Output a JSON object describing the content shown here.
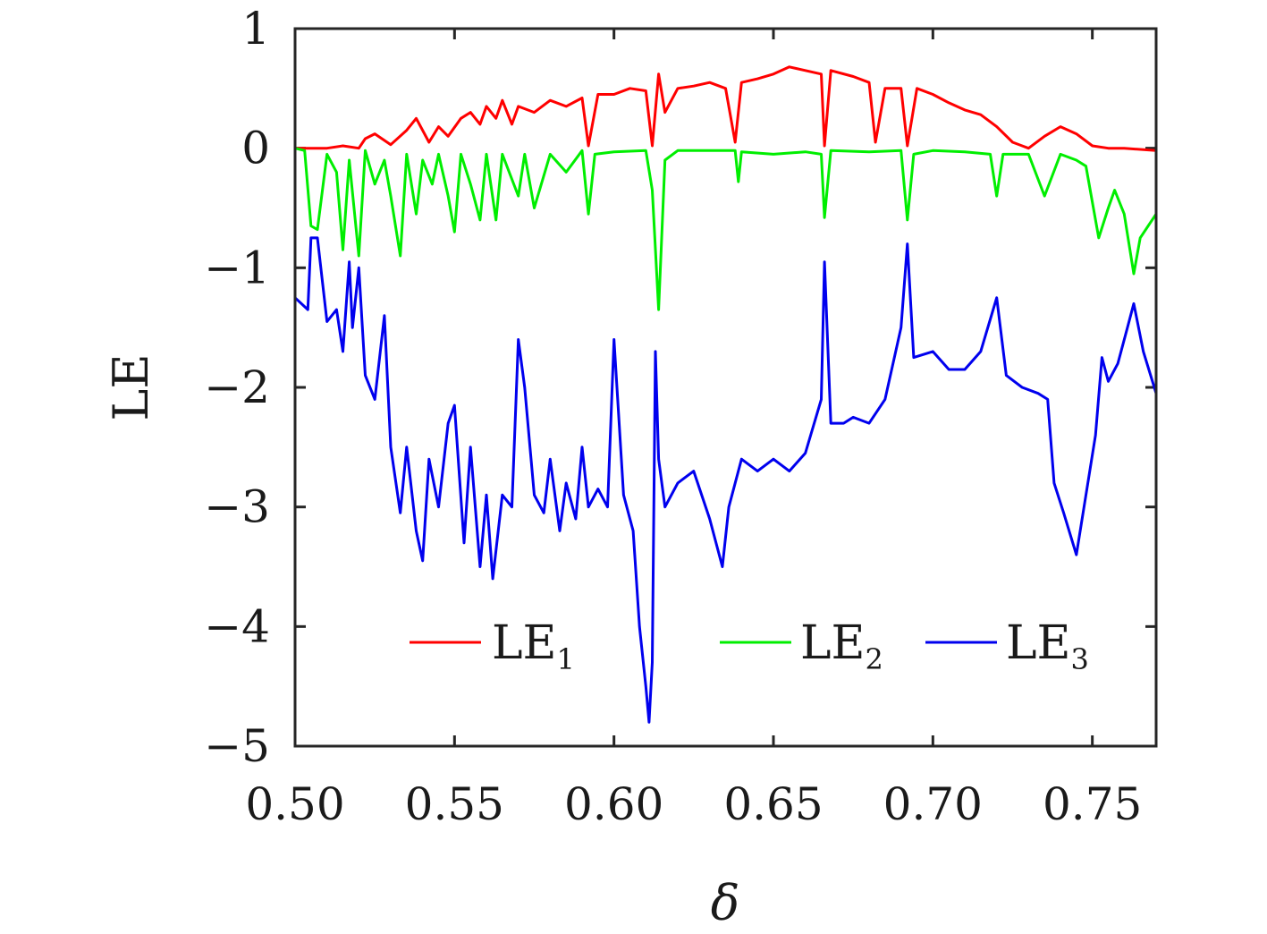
{
  "chart_data": {
    "type": "line",
    "title": "",
    "xlabel": "δ",
    "ylabel": "LE",
    "xlim": [
      0.5,
      0.77
    ],
    "ylim": [
      -5,
      1
    ],
    "x_ticks": [
      0.5,
      0.55,
      0.6,
      0.65,
      0.7,
      0.75
    ],
    "x_tick_labels": [
      "0.50",
      "0.55",
      "0.60",
      "0.65",
      "0.70",
      "0.75"
    ],
    "y_ticks": [
      1,
      0,
      -1,
      -2,
      -3,
      -4,
      -5
    ],
    "y_tick_labels": [
      "1",
      "0",
      "−1",
      "−2",
      "−3",
      "−4",
      "−5"
    ],
    "grid": false,
    "legend_position": "bottom",
    "series": [
      {
        "name": "LE1",
        "legend_main": "LE",
        "legend_sub": "1",
        "color": "#ff0000",
        "points": [
          [
            0.5,
            0.0
          ],
          [
            0.51,
            0.0
          ],
          [
            0.515,
            0.02
          ],
          [
            0.52,
            0.0
          ],
          [
            0.522,
            0.08
          ],
          [
            0.525,
            0.12
          ],
          [
            0.53,
            0.03
          ],
          [
            0.535,
            0.15
          ],
          [
            0.538,
            0.25
          ],
          [
            0.542,
            0.05
          ],
          [
            0.545,
            0.18
          ],
          [
            0.548,
            0.1
          ],
          [
            0.552,
            0.25
          ],
          [
            0.555,
            0.3
          ],
          [
            0.558,
            0.2
          ],
          [
            0.56,
            0.35
          ],
          [
            0.563,
            0.25
          ],
          [
            0.565,
            0.4
          ],
          [
            0.568,
            0.2
          ],
          [
            0.57,
            0.35
          ],
          [
            0.575,
            0.3
          ],
          [
            0.58,
            0.4
          ],
          [
            0.585,
            0.35
          ],
          [
            0.59,
            0.42
          ],
          [
            0.592,
            0.02
          ],
          [
            0.595,
            0.45
          ],
          [
            0.6,
            0.45
          ],
          [
            0.605,
            0.5
          ],
          [
            0.61,
            0.48
          ],
          [
            0.612,
            0.02
          ],
          [
            0.614,
            0.62
          ],
          [
            0.616,
            0.3
          ],
          [
            0.62,
            0.5
          ],
          [
            0.625,
            0.52
          ],
          [
            0.63,
            0.55
          ],
          [
            0.635,
            0.5
          ],
          [
            0.638,
            0.05
          ],
          [
            0.64,
            0.55
          ],
          [
            0.645,
            0.58
          ],
          [
            0.65,
            0.62
          ],
          [
            0.655,
            0.68
          ],
          [
            0.66,
            0.65
          ],
          [
            0.665,
            0.62
          ],
          [
            0.666,
            0.02
          ],
          [
            0.668,
            0.65
          ],
          [
            0.675,
            0.6
          ],
          [
            0.68,
            0.55
          ],
          [
            0.682,
            0.05
          ],
          [
            0.685,
            0.5
          ],
          [
            0.69,
            0.5
          ],
          [
            0.692,
            0.02
          ],
          [
            0.695,
            0.5
          ],
          [
            0.7,
            0.45
          ],
          [
            0.705,
            0.38
          ],
          [
            0.71,
            0.32
          ],
          [
            0.715,
            0.28
          ],
          [
            0.72,
            0.18
          ],
          [
            0.725,
            0.05
          ],
          [
            0.73,
            0.0
          ],
          [
            0.735,
            0.1
          ],
          [
            0.74,
            0.18
          ],
          [
            0.745,
            0.12
          ],
          [
            0.75,
            0.02
          ],
          [
            0.755,
            0.0
          ],
          [
            0.76,
            0.0
          ],
          [
            0.77,
            -0.02
          ]
        ]
      },
      {
        "name": "LE2",
        "legend_main": "LE",
        "legend_sub": "2",
        "color": "#00ee00",
        "points": [
          [
            0.5,
            0.0
          ],
          [
            0.503,
            -0.02
          ],
          [
            0.505,
            -0.65
          ],
          [
            0.507,
            -0.68
          ],
          [
            0.51,
            -0.05
          ],
          [
            0.513,
            -0.2
          ],
          [
            0.515,
            -0.85
          ],
          [
            0.517,
            -0.1
          ],
          [
            0.52,
            -0.9
          ],
          [
            0.522,
            -0.02
          ],
          [
            0.525,
            -0.3
          ],
          [
            0.528,
            -0.1
          ],
          [
            0.53,
            -0.4
          ],
          [
            0.533,
            -0.9
          ],
          [
            0.535,
            -0.05
          ],
          [
            0.538,
            -0.55
          ],
          [
            0.54,
            -0.1
          ],
          [
            0.543,
            -0.3
          ],
          [
            0.545,
            -0.05
          ],
          [
            0.548,
            -0.4
          ],
          [
            0.55,
            -0.7
          ],
          [
            0.552,
            -0.05
          ],
          [
            0.555,
            -0.3
          ],
          [
            0.558,
            -0.6
          ],
          [
            0.56,
            -0.05
          ],
          [
            0.563,
            -0.6
          ],
          [
            0.565,
            -0.05
          ],
          [
            0.57,
            -0.4
          ],
          [
            0.572,
            -0.05
          ],
          [
            0.575,
            -0.5
          ],
          [
            0.58,
            -0.05
          ],
          [
            0.585,
            -0.2
          ],
          [
            0.59,
            -0.02
          ],
          [
            0.592,
            -0.55
          ],
          [
            0.594,
            -0.05
          ],
          [
            0.6,
            -0.03
          ],
          [
            0.61,
            -0.02
          ],
          [
            0.612,
            -0.35
          ],
          [
            0.614,
            -1.35
          ],
          [
            0.616,
            -0.1
          ],
          [
            0.62,
            -0.02
          ],
          [
            0.63,
            -0.02
          ],
          [
            0.638,
            -0.02
          ],
          [
            0.639,
            -0.28
          ],
          [
            0.64,
            -0.03
          ],
          [
            0.65,
            -0.05
          ],
          [
            0.66,
            -0.03
          ],
          [
            0.665,
            -0.05
          ],
          [
            0.666,
            -0.58
          ],
          [
            0.668,
            -0.02
          ],
          [
            0.68,
            -0.03
          ],
          [
            0.69,
            -0.02
          ],
          [
            0.692,
            -0.6
          ],
          [
            0.694,
            -0.05
          ],
          [
            0.7,
            -0.02
          ],
          [
            0.71,
            -0.03
          ],
          [
            0.718,
            -0.05
          ],
          [
            0.72,
            -0.4
          ],
          [
            0.722,
            -0.05
          ],
          [
            0.73,
            -0.05
          ],
          [
            0.735,
            -0.4
          ],
          [
            0.74,
            -0.05
          ],
          [
            0.745,
            -0.1
          ],
          [
            0.748,
            -0.15
          ],
          [
            0.752,
            -0.75
          ],
          [
            0.755,
            -0.5
          ],
          [
            0.757,
            -0.35
          ],
          [
            0.76,
            -0.55
          ],
          [
            0.763,
            -1.05
          ],
          [
            0.765,
            -0.75
          ],
          [
            0.77,
            -0.55
          ]
        ]
      },
      {
        "name": "LE3",
        "legend_main": "LE",
        "legend_sub": "3",
        "color": "#0000ee",
        "points": [
          [
            0.5,
            -1.25
          ],
          [
            0.504,
            -1.35
          ],
          [
            0.505,
            -0.75
          ],
          [
            0.507,
            -0.75
          ],
          [
            0.51,
            -1.45
          ],
          [
            0.513,
            -1.35
          ],
          [
            0.515,
            -1.7
          ],
          [
            0.517,
            -0.95
          ],
          [
            0.518,
            -1.5
          ],
          [
            0.52,
            -1.0
          ],
          [
            0.522,
            -1.9
          ],
          [
            0.525,
            -2.1
          ],
          [
            0.528,
            -1.4
          ],
          [
            0.53,
            -2.5
          ],
          [
            0.533,
            -3.05
          ],
          [
            0.535,
            -2.5
          ],
          [
            0.538,
            -3.2
          ],
          [
            0.54,
            -3.45
          ],
          [
            0.542,
            -2.6
          ],
          [
            0.545,
            -3.0
          ],
          [
            0.548,
            -2.3
          ],
          [
            0.55,
            -2.15
          ],
          [
            0.553,
            -3.3
          ],
          [
            0.555,
            -2.5
          ],
          [
            0.558,
            -3.5
          ],
          [
            0.56,
            -2.9
          ],
          [
            0.562,
            -3.6
          ],
          [
            0.565,
            -2.9
          ],
          [
            0.568,
            -3.0
          ],
          [
            0.57,
            -1.6
          ],
          [
            0.572,
            -2.0
          ],
          [
            0.575,
            -2.9
          ],
          [
            0.578,
            -3.05
          ],
          [
            0.58,
            -2.6
          ],
          [
            0.583,
            -3.2
          ],
          [
            0.585,
            -2.8
          ],
          [
            0.588,
            -3.1
          ],
          [
            0.59,
            -2.5
          ],
          [
            0.592,
            -3.0
          ],
          [
            0.595,
            -2.85
          ],
          [
            0.598,
            -3.0
          ],
          [
            0.6,
            -1.6
          ],
          [
            0.603,
            -2.9
          ],
          [
            0.606,
            -3.2
          ],
          [
            0.608,
            -4.0
          ],
          [
            0.61,
            -4.5
          ],
          [
            0.611,
            -4.8
          ],
          [
            0.612,
            -4.3
          ],
          [
            0.613,
            -1.7
          ],
          [
            0.614,
            -2.6
          ],
          [
            0.616,
            -3.0
          ],
          [
            0.62,
            -2.8
          ],
          [
            0.625,
            -2.7
          ],
          [
            0.63,
            -3.1
          ],
          [
            0.634,
            -3.5
          ],
          [
            0.636,
            -3.0
          ],
          [
            0.64,
            -2.6
          ],
          [
            0.645,
            -2.7
          ],
          [
            0.65,
            -2.6
          ],
          [
            0.655,
            -2.7
          ],
          [
            0.66,
            -2.55
          ],
          [
            0.665,
            -2.1
          ],
          [
            0.666,
            -0.95
          ],
          [
            0.668,
            -2.3
          ],
          [
            0.672,
            -2.3
          ],
          [
            0.675,
            -2.25
          ],
          [
            0.68,
            -2.3
          ],
          [
            0.685,
            -2.1
          ],
          [
            0.69,
            -1.5
          ],
          [
            0.692,
            -0.8
          ],
          [
            0.694,
            -1.75
          ],
          [
            0.7,
            -1.7
          ],
          [
            0.705,
            -1.85
          ],
          [
            0.71,
            -1.85
          ],
          [
            0.715,
            -1.7
          ],
          [
            0.72,
            -1.25
          ],
          [
            0.723,
            -1.9
          ],
          [
            0.728,
            -2.0
          ],
          [
            0.733,
            -2.05
          ],
          [
            0.736,
            -2.1
          ],
          [
            0.738,
            -2.8
          ],
          [
            0.741,
            -3.05
          ],
          [
            0.745,
            -3.4
          ],
          [
            0.748,
            -2.9
          ],
          [
            0.751,
            -2.4
          ],
          [
            0.753,
            -1.75
          ],
          [
            0.755,
            -1.95
          ],
          [
            0.758,
            -1.8
          ],
          [
            0.761,
            -1.5
          ],
          [
            0.763,
            -1.3
          ],
          [
            0.766,
            -1.7
          ],
          [
            0.77,
            -2.05
          ]
        ]
      }
    ]
  }
}
